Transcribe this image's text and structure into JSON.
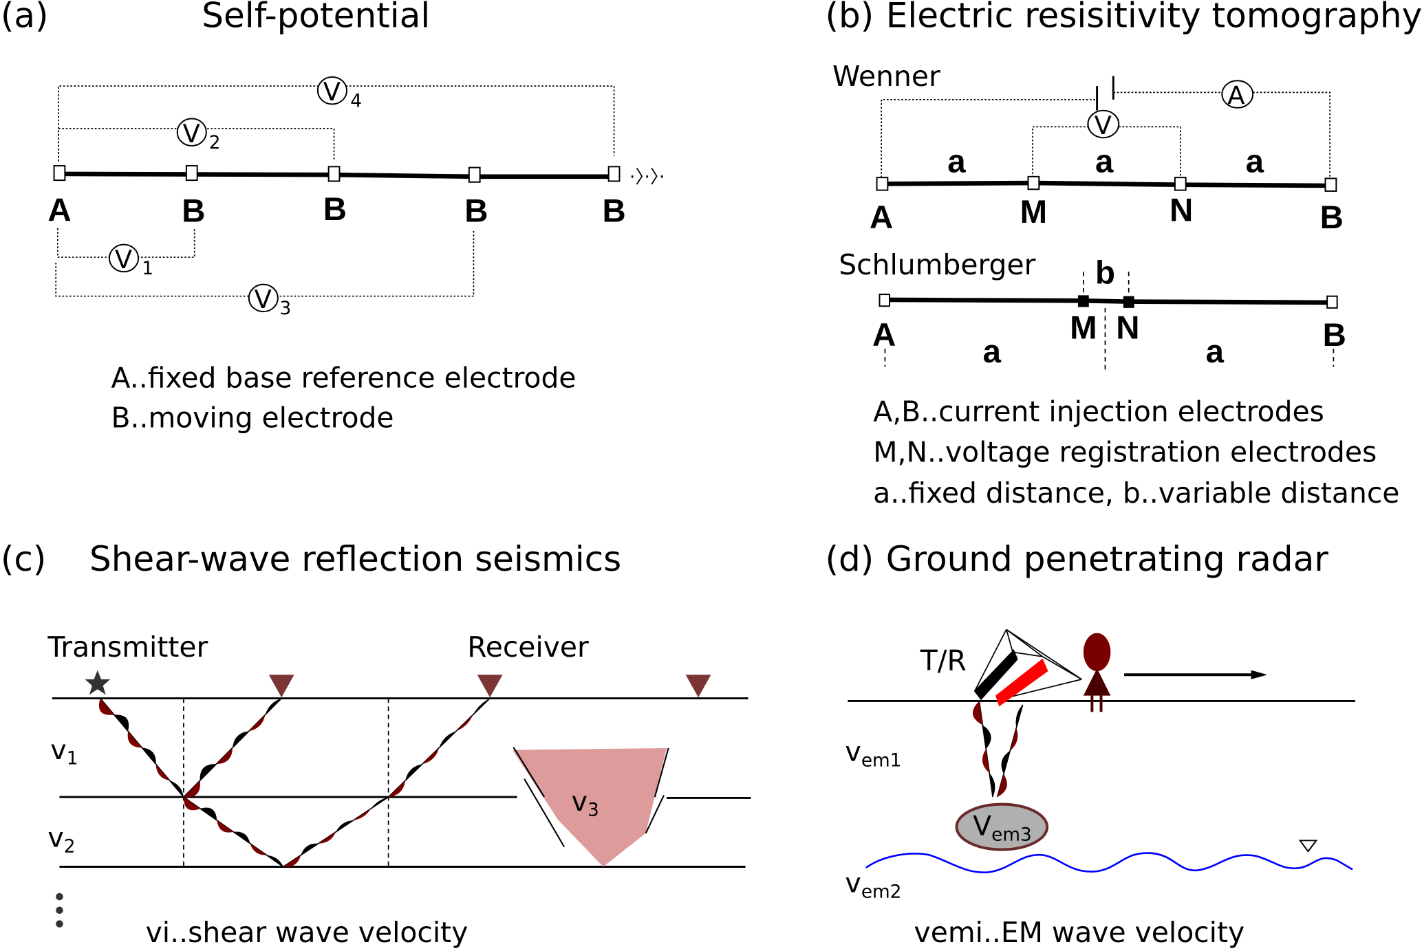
{
  "panel_a": {
    "label": "(a)",
    "title": "Self-potential",
    "electrodes": [
      "A",
      "B",
      "B",
      "B",
      "B"
    ],
    "continuation": "·〉·〉·",
    "meters": [
      {
        "symbol": "V",
        "sub": "1"
      },
      {
        "symbol": "V",
        "sub": "2"
      },
      {
        "symbol": "V",
        "sub": "3"
      },
      {
        "symbol": "V",
        "sub": "4"
      }
    ],
    "legend": [
      "A..fixed base reference electrode",
      "B..moving electrode"
    ]
  },
  "panel_b": {
    "label": "(b)",
    "title": "Electric resisitivity tomography",
    "wenner": {
      "name": "Wenner",
      "electrodes": [
        "A",
        "M",
        "N",
        "B"
      ],
      "spacings": [
        "a",
        "a",
        "a"
      ],
      "ammeter": "A",
      "voltmeter": "V"
    },
    "schlumberger": {
      "name": "Schlumberger",
      "electrodes": [
        "A",
        "M",
        "N",
        "B"
      ],
      "spacings": [
        "a",
        "a"
      ],
      "inner_spacing": "b"
    },
    "legend": [
      "A,B..current injection electrodes",
      "M,N..voltage registration electrodes",
      "a..fixed distance, b..variable distance"
    ]
  },
  "panel_c": {
    "label": "(c)",
    "title": "Shear-wave reflection seismics",
    "transmitter": "Transmitter",
    "receiver": "Receiver",
    "layers": [
      {
        "symbol": "v",
        "sub": "1"
      },
      {
        "symbol": "v",
        "sub": "2"
      },
      {
        "symbol": "v",
        "sub": "3"
      }
    ],
    "caption_symbol": "vi",
    "caption": "..shear wave velocity",
    "colors": {
      "wave_red": "#7a0000",
      "receiver": "#7b3535",
      "anomaly": "#dd9b9b"
    }
  },
  "panel_d": {
    "label": "(d)",
    "title": "Ground penetrating radar",
    "antenna": "T/R",
    "layers": [
      {
        "symbol": "v",
        "sub": "em1"
      },
      {
        "symbol": "v",
        "sub": "em2"
      },
      {
        "symbol": "V",
        "sub": "em3"
      }
    ],
    "caption_symbol": "vemi",
    "caption": "..EM wave velocity",
    "colors": {
      "water_table": "#0000ff",
      "person": "#7a0000",
      "antenna_red": "#ff0000",
      "object": "#b0b0b0"
    }
  }
}
